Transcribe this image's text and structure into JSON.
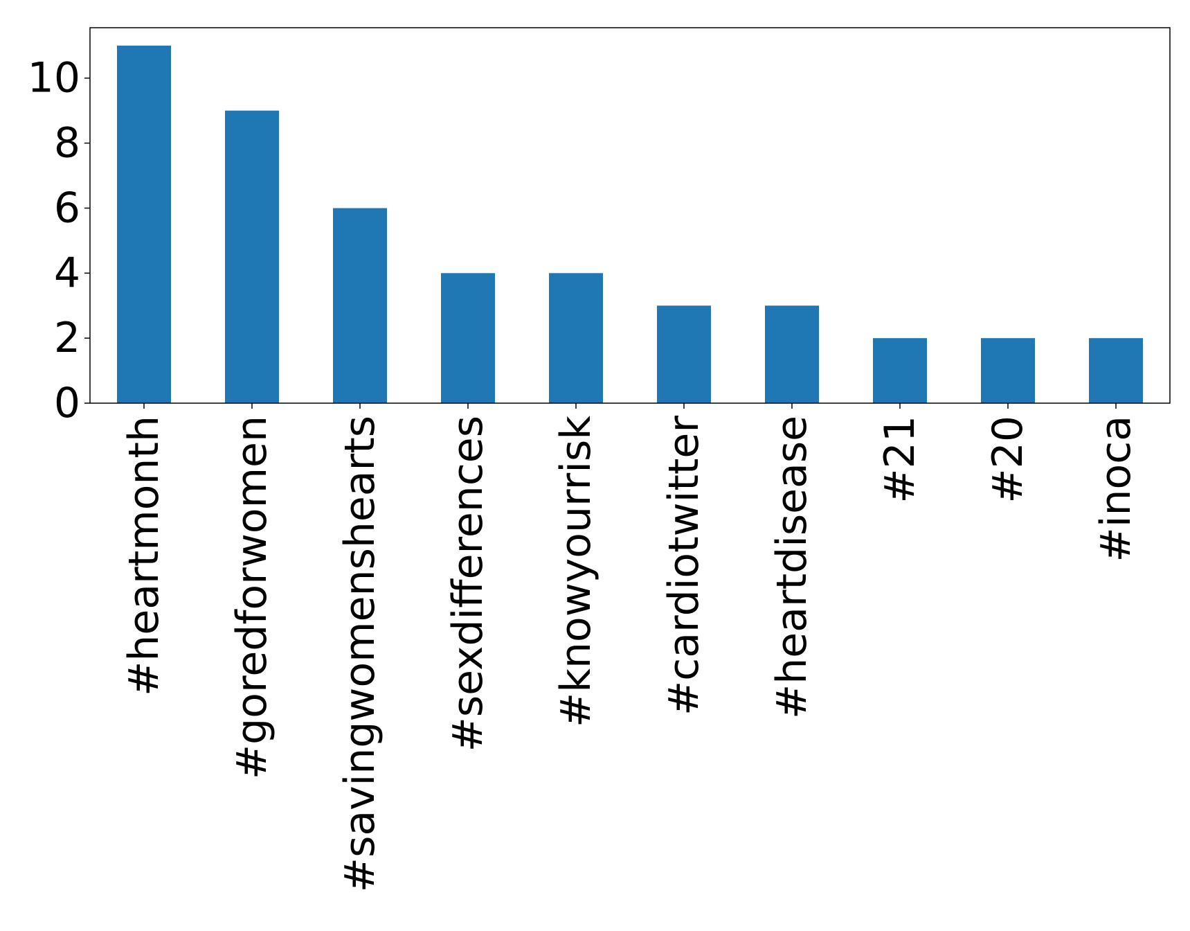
{
  "chart_data": {
    "type": "bar",
    "title": "",
    "xlabel": "",
    "ylabel": "",
    "categories": [
      "#heartmonth",
      "#goredforwomen",
      "#savingwomenshearts",
      "#sexdifferences",
      "#knowyourrisk",
      "#cardiotwitter",
      "#heartdisease",
      "#21",
      "#20",
      "#inoca"
    ],
    "values": [
      11,
      9,
      6,
      4,
      4,
      3,
      3,
      2,
      2,
      2
    ],
    "ylim": [
      0,
      11.55
    ],
    "yticks": [
      0,
      2,
      4,
      6,
      8,
      10
    ],
    "grid": false,
    "legend": "none",
    "bar_color": "#1f77b4"
  }
}
